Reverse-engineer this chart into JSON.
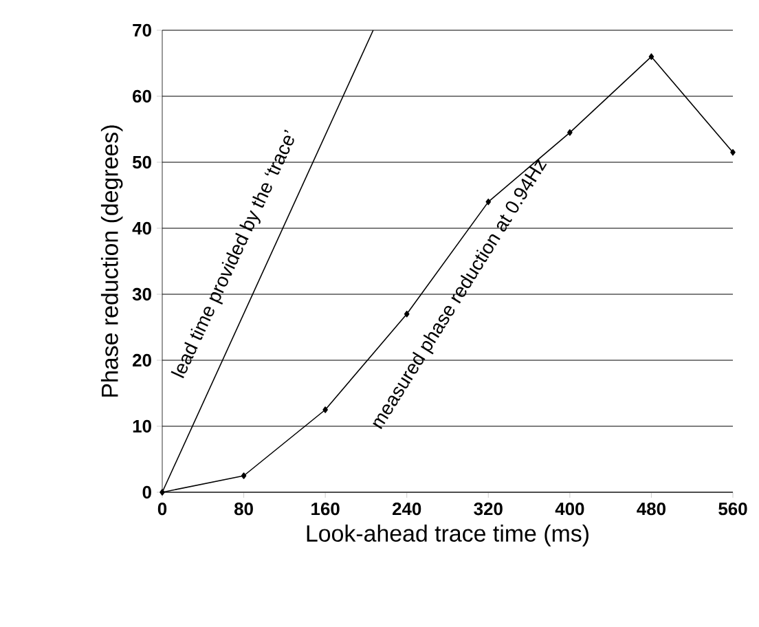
{
  "chart_data": {
    "type": "line",
    "xlabel": "Look-ahead trace time (ms)",
    "ylabel": "Phase reduction (degrees)",
    "xlim": [
      0,
      560
    ],
    "xticks": [
      0,
      80,
      160,
      240,
      320,
      400,
      480,
      560
    ],
    "ylim": [
      0,
      70
    ],
    "yticks": [
      0,
      10,
      20,
      30,
      40,
      50,
      60,
      70
    ],
    "grid": "y",
    "series": [
      {
        "color": "#000000",
        "x": [
          0,
          207
        ],
        "values": [
          0,
          70
        ]
      },
      {
        "color": "#000000",
        "x": [
          0,
          80,
          160,
          240,
          320,
          400,
          480,
          560
        ],
        "values": [
          0,
          2.5,
          12.5,
          27,
          44,
          54.5,
          66,
          51.5
        ],
        "marker": "diamond"
      }
    ],
    "annotations": [
      "lead time provided by the ‘trace’",
      "measured phase reduction at 0.94Hz"
    ]
  }
}
